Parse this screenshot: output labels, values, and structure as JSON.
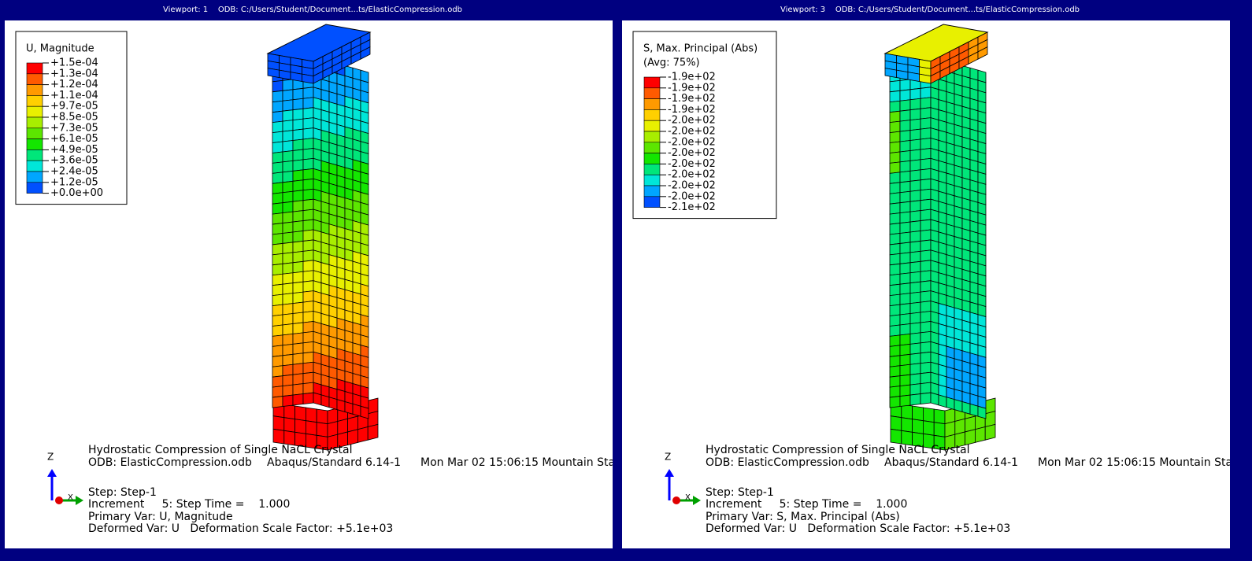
{
  "viewports": [
    {
      "title": "Viewport: 1",
      "odb_path": "ODB: C:/Users/Student/Document...ts/ElasticCompression.odb",
      "legend": {
        "title": [
          "U, Magnitude"
        ],
        "entries": [
          "+1.5e-04",
          "+1.3e-04",
          "+1.2e-04",
          "+1.1e-04",
          "+9.7e-05",
          "+8.5e-05",
          "+7.3e-05",
          "+6.1e-05",
          "+4.9e-05",
          "+3.6e-05",
          "+2.4e-05",
          "+1.2e-05",
          "+0.0e+00"
        ],
        "colors": [
          "#ff0000",
          "#ff5a00",
          "#ff9a00",
          "#ffd000",
          "#e8f000",
          "#a8ee00",
          "#5ce600",
          "#14e600",
          "#00e67a",
          "#00e6d8",
          "#00a6ff",
          "#0050ff"
        ]
      },
      "info": {
        "title": "Hydrostatic Compression of Single NaCL Crystal",
        "odb": "ODB: ElasticCompression.odb",
        "solver": "Abaqus/Standard 6.14-1",
        "date": "Mon Mar 02 15:06:15 Mountain Sta",
        "step": "Step: Step-1",
        "increment": "Increment     5: Step Time =    1.000",
        "primary": "Primary Var: U, Magnitude",
        "deformed": "Deformed Var: U   Deformation Scale Factor: +5.1e+03"
      },
      "triad": {
        "z": "Z",
        "x": "X"
      }
    },
    {
      "title": "Viewport: 3",
      "odb_path": "ODB: C:/Users/Student/Document...ts/ElasticCompression.odb",
      "legend": {
        "title": [
          "S, Max. Principal (Abs)",
          "(Avg: 75%)"
        ],
        "entries": [
          "-1.9e+02",
          "-1.9e+02",
          "-1.9e+02",
          "-1.9e+02",
          "-2.0e+02",
          "-2.0e+02",
          "-2.0e+02",
          "-2.0e+02",
          "-2.0e+02",
          "-2.0e+02",
          "-2.0e+02",
          "-2.0e+02",
          "-2.1e+02"
        ],
        "colors": [
          "#ff0000",
          "#ff5a00",
          "#ff9a00",
          "#ffd000",
          "#e8f000",
          "#a8ee00",
          "#5ce600",
          "#14e600",
          "#00e67a",
          "#00e6d8",
          "#00a6ff",
          "#0050ff"
        ]
      },
      "info": {
        "title": "Hydrostatic Compression of Single NaCL Crystal",
        "odb": "ODB: ElasticCompression.odb",
        "solver": "Abaqus/Standard 6.14-1",
        "date": "Mon Mar 02 15:06:15 Mountain Sta",
        "step": "Step: Step-1",
        "increment": "Increment     5: Step Time =    1.000",
        "primary": "Primary Var: S, Max. Principal (Abs)",
        "deformed": "Deformed Var: U   Deformation Scale Factor: +5.1e+03"
      },
      "triad": {
        "z": "Z",
        "x": "X"
      }
    }
  ]
}
